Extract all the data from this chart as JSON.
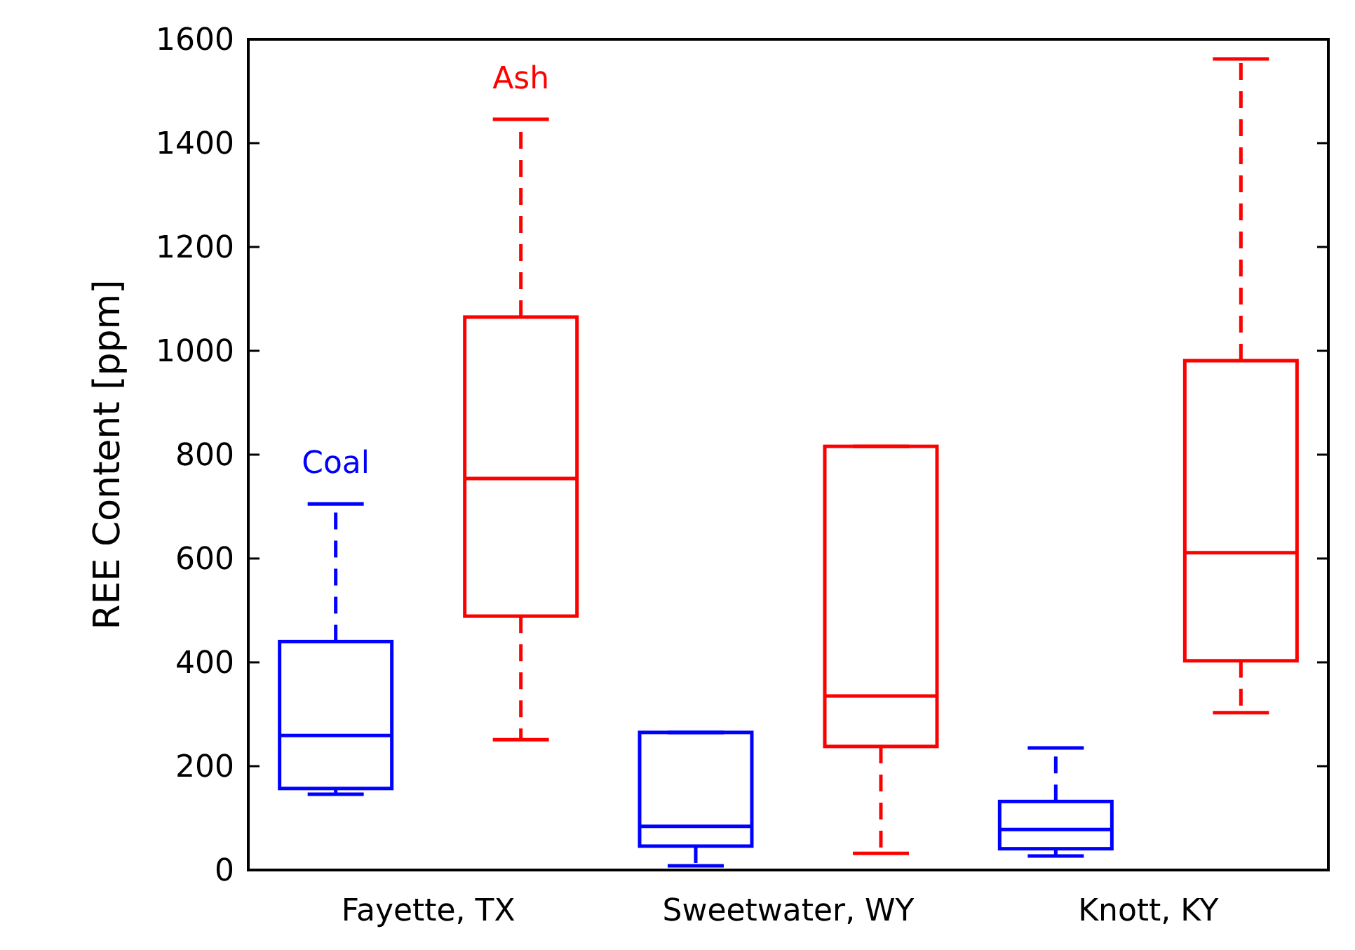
{
  "chart_data": {
    "type": "box",
    "ylabel": "REE Content [ppm]",
    "categories": [
      "Fayette, TX",
      "Sweetwater, WY",
      "Knott, KY"
    ],
    "ylim": [
      0,
      1600
    ],
    "yticks": [
      0,
      200,
      400,
      600,
      800,
      1000,
      1200,
      1400,
      1600
    ],
    "grid": false,
    "legend": false,
    "series": [
      {
        "name": "Coal",
        "color": "#0000ff",
        "boxes": [
          {
            "low": 146,
            "q1": 157,
            "median": 259,
            "q3": 440,
            "high": 705
          },
          {
            "low": 8,
            "q1": 46,
            "median": 84,
            "q3": 265,
            "high": 265
          },
          {
            "low": 27,
            "q1": 41,
            "median": 78,
            "q3": 132,
            "high": 235
          }
        ]
      },
      {
        "name": "Ash",
        "color": "#ff0000",
        "boxes": [
          {
            "low": 251,
            "q1": 489,
            "median": 754,
            "q3": 1065,
            "high": 1446
          },
          {
            "low": 32,
            "q1": 238,
            "median": 335,
            "q3": 816,
            "high": 816
          },
          {
            "low": 303,
            "q1": 403,
            "median": 611,
            "q3": 981,
            "high": 1562
          }
        ]
      }
    ]
  }
}
